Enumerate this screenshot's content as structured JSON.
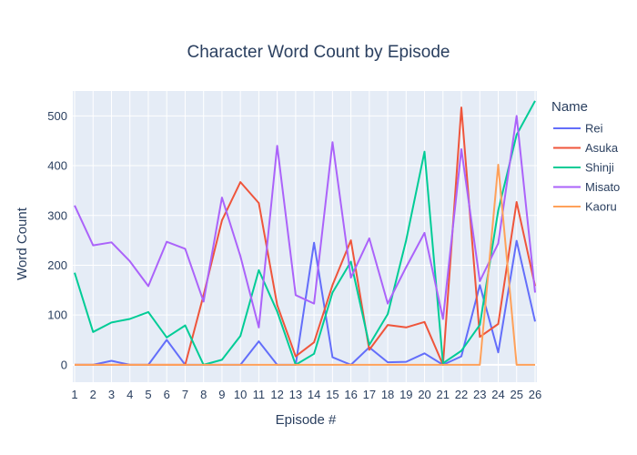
{
  "chart_data": {
    "type": "line",
    "title": "Character Word Count by Episode",
    "xlabel": "Episode #",
    "ylabel": "Word Count",
    "x": [
      1,
      2,
      3,
      4,
      5,
      6,
      7,
      8,
      9,
      10,
      11,
      12,
      13,
      14,
      15,
      16,
      17,
      18,
      19,
      20,
      21,
      22,
      23,
      24,
      25,
      26
    ],
    "x_ticks": [
      "1",
      "2",
      "3",
      "4",
      "5",
      "6",
      "7",
      "8",
      "9",
      "10",
      "11",
      "12",
      "13",
      "14",
      "15",
      "16",
      "17",
      "18",
      "19",
      "20",
      "21",
      "22",
      "23",
      "24",
      "25",
      "26"
    ],
    "xlim": [
      0.9,
      26.1
    ],
    "ylim": [
      -35,
      550
    ],
    "y_ticks": [
      0,
      100,
      200,
      300,
      400,
      500
    ],
    "grid": true,
    "legend": {
      "title": "Name",
      "placement": "right"
    },
    "series": [
      {
        "name": "Rei",
        "color": "#636efa",
        "values": [
          0,
          0,
          8,
          0,
          0,
          50,
          0,
          0,
          0,
          0,
          47,
          0,
          0,
          245,
          15,
          0,
          35,
          5,
          6,
          23,
          0,
          17,
          160,
          25,
          249,
          87
        ]
      },
      {
        "name": "Asuka",
        "color": "#ef553b",
        "values": [
          0,
          0,
          0,
          0,
          0,
          0,
          0,
          140,
          290,
          367,
          325,
          120,
          17,
          45,
          160,
          250,
          30,
          80,
          75,
          86,
          0,
          517,
          56,
          82,
          327,
          158
        ]
      },
      {
        "name": "Shinji",
        "color": "#00cc96",
        "values": [
          185,
          66,
          85,
          92,
          106,
          55,
          79,
          0,
          10,
          58,
          190,
          107,
          0,
          22,
          145,
          207,
          40,
          102,
          250,
          428,
          3,
          28,
          80,
          310,
          462,
          530
        ]
      },
      {
        "name": "Misato",
        "color": "#ab63fa",
        "values": [
          320,
          240,
          246,
          208,
          158,
          247,
          233,
          127,
          336,
          218,
          75,
          440,
          140,
          123,
          447,
          175,
          254,
          123,
          196,
          265,
          92,
          433,
          168,
          244,
          500,
          145
        ]
      },
      {
        "name": "Kaoru",
        "color": "#ffa15a",
        "values": [
          0,
          0,
          0,
          0,
          0,
          0,
          0,
          0,
          0,
          0,
          0,
          0,
          0,
          0,
          0,
          0,
          0,
          0,
          0,
          0,
          0,
          0,
          0,
          402,
          0,
          0
        ]
      }
    ]
  }
}
